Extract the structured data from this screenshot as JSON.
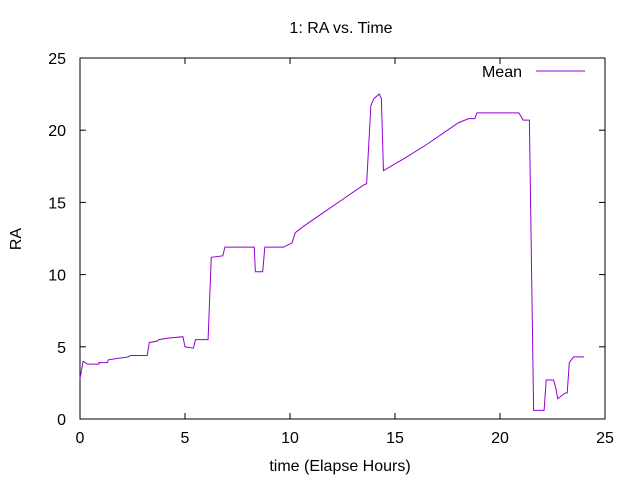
{
  "chart_data": {
    "type": "line",
    "title": "1: RA vs. Time",
    "xlabel": "time (Elapse Hours)",
    "ylabel": "RA",
    "xlim": [
      0,
      25
    ],
    "ylim": [
      0,
      25
    ],
    "xticks": [
      0,
      5,
      10,
      15,
      20,
      25
    ],
    "yticks": [
      0,
      5,
      10,
      15,
      20,
      25
    ],
    "grid": false,
    "legend_position": "top-right",
    "series": [
      {
        "name": "Mean",
        "color": "#9400d3",
        "points": [
          [
            0.0,
            2.8
          ],
          [
            0.15,
            4.0
          ],
          [
            0.35,
            3.8
          ],
          [
            0.9,
            3.8
          ],
          [
            0.9,
            3.9
          ],
          [
            1.3,
            3.9
          ],
          [
            1.35,
            4.1
          ],
          [
            1.8,
            4.2
          ],
          [
            2.3,
            4.3
          ],
          [
            2.4,
            4.4
          ],
          [
            3.2,
            4.4
          ],
          [
            3.3,
            5.3
          ],
          [
            3.7,
            5.4
          ],
          [
            3.75,
            5.5
          ],
          [
            4.2,
            5.6
          ],
          [
            4.9,
            5.7
          ],
          [
            5.0,
            5.0
          ],
          [
            5.4,
            4.9
          ],
          [
            5.5,
            5.5
          ],
          [
            6.0,
            5.5
          ],
          [
            6.1,
            5.5
          ],
          [
            6.25,
            11.2
          ],
          [
            6.8,
            11.3
          ],
          [
            6.9,
            11.9
          ],
          [
            8.3,
            11.9
          ],
          [
            8.35,
            10.2
          ],
          [
            8.7,
            10.2
          ],
          [
            8.8,
            11.9
          ],
          [
            9.7,
            11.9
          ],
          [
            10.1,
            12.2
          ],
          [
            10.25,
            12.9
          ],
          [
            10.6,
            13.3
          ],
          [
            11.5,
            14.2
          ],
          [
            12.5,
            15.2
          ],
          [
            13.5,
            16.2
          ],
          [
            13.65,
            16.3
          ],
          [
            13.85,
            21.7
          ],
          [
            14.0,
            22.2
          ],
          [
            14.25,
            22.5
          ],
          [
            14.35,
            22.2
          ],
          [
            14.45,
            17.2
          ],
          [
            15.5,
            18.1
          ],
          [
            16.5,
            19.0
          ],
          [
            17.5,
            20.0
          ],
          [
            18.0,
            20.5
          ],
          [
            18.5,
            20.8
          ],
          [
            18.8,
            20.8
          ],
          [
            18.9,
            21.2
          ],
          [
            20.9,
            21.2
          ],
          [
            21.1,
            20.7
          ],
          [
            21.4,
            20.7
          ],
          [
            21.6,
            0.6
          ],
          [
            22.1,
            0.6
          ],
          [
            22.2,
            2.7
          ],
          [
            22.55,
            2.7
          ],
          [
            22.65,
            2.2
          ],
          [
            22.75,
            1.4
          ],
          [
            23.1,
            1.8
          ],
          [
            23.2,
            1.8
          ],
          [
            23.3,
            3.9
          ],
          [
            23.5,
            4.3
          ],
          [
            24.0,
            4.3
          ]
        ]
      }
    ]
  }
}
